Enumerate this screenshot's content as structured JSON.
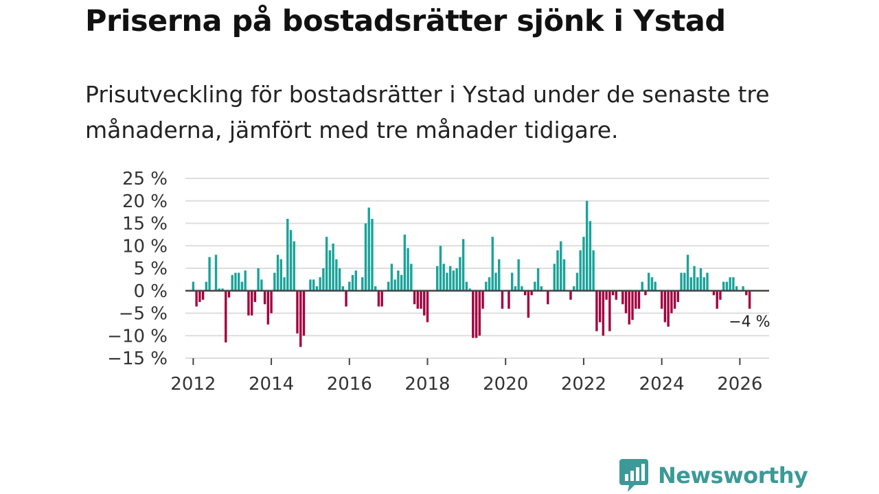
{
  "title": "Priserna på bostadsrätter sjönk i Ystad",
  "subtitle": "Prisutveckling för bostadsrätter i Ystad under de senaste tre månaderna, jämfört med tre månader tidigare.",
  "brand": {
    "name": "Newsworthy",
    "color": "#3b9a97"
  },
  "colors": {
    "positive": "#1aa39a",
    "negative": "#a3003f",
    "grid": "#dddddd",
    "zero_line": "#444444"
  },
  "chart_data": {
    "type": "bar",
    "title": "Priserna på bostadsrätter sjönk i Ystad",
    "xlabel": "",
    "ylabel": "",
    "ylim": [
      -15,
      25
    ],
    "xlim": [
      2011.8,
      2026.75
    ],
    "y_ticks": [
      25,
      20,
      15,
      10,
      5,
      0,
      -5,
      -10,
      -15
    ],
    "y_tick_labels": [
      "25 %",
      "20 %",
      "15 %",
      "10 %",
      "5 %",
      "0 %",
      "−5 %",
      "−10 %",
      "−15 %"
    ],
    "x_ticks": [
      2012,
      2014,
      2016,
      2018,
      2020,
      2022,
      2024,
      2026
    ],
    "x_tick_labels": [
      "2012",
      "2014",
      "2016",
      "2018",
      "2020",
      "2022",
      "2024",
      "2026"
    ],
    "start": {
      "year": 2012,
      "month": 1
    },
    "unit": "%",
    "values": [
      2,
      -3.5,
      -2.5,
      -2,
      2,
      7.5,
      0,
      8,
      0.5,
      0.5,
      -11.5,
      -1.5,
      3.5,
      4,
      4,
      2,
      4.5,
      -5.5,
      -5.5,
      -2.5,
      5,
      2.5,
      -3,
      -7.5,
      -5,
      4,
      8,
      7,
      3,
      16,
      13.5,
      11,
      -9.5,
      -12.5,
      -10,
      0,
      2.5,
      2.5,
      1,
      3,
      5,
      12,
      9,
      10.5,
      7,
      5,
      1,
      -3.5,
      2,
      3.5,
      4.5,
      0,
      3,
      15,
      18.5,
      16,
      1,
      -3.5,
      -3.5,
      0,
      2,
      6,
      2.5,
      4.5,
      3.5,
      12.5,
      9.5,
      6,
      -3,
      -4,
      -4,
      -5.5,
      -7,
      0,
      0,
      5.5,
      10,
      6,
      4,
      5.5,
      4.5,
      5,
      7.5,
      11.5,
      2,
      0.5,
      -10.5,
      -10.5,
      -10,
      -4,
      2,
      3,
      12,
      4,
      7,
      -4,
      0,
      -4,
      4,
      1,
      7,
      1,
      -1,
      -6,
      -1,
      2,
      5,
      1,
      0,
      -3,
      0,
      6,
      9,
      11,
      7,
      0,
      -2,
      1,
      4,
      9,
      12,
      20,
      15.5,
      9,
      -9,
      -7,
      -10,
      -2,
      -9,
      -1,
      -2,
      0,
      -3,
      -5,
      -7.5,
      -6.5,
      -4,
      -4,
      2,
      -1,
      4,
      3,
      2,
      0,
      -4,
      -7,
      -8,
      -5,
      -4,
      -2.5,
      4,
      4,
      8,
      3,
      5.5,
      3,
      5,
      3,
      4,
      0,
      -1,
      -4,
      -2,
      2,
      2,
      3,
      3,
      1,
      0,
      1,
      -1,
      -4
    ],
    "end_label": "−4 %"
  }
}
